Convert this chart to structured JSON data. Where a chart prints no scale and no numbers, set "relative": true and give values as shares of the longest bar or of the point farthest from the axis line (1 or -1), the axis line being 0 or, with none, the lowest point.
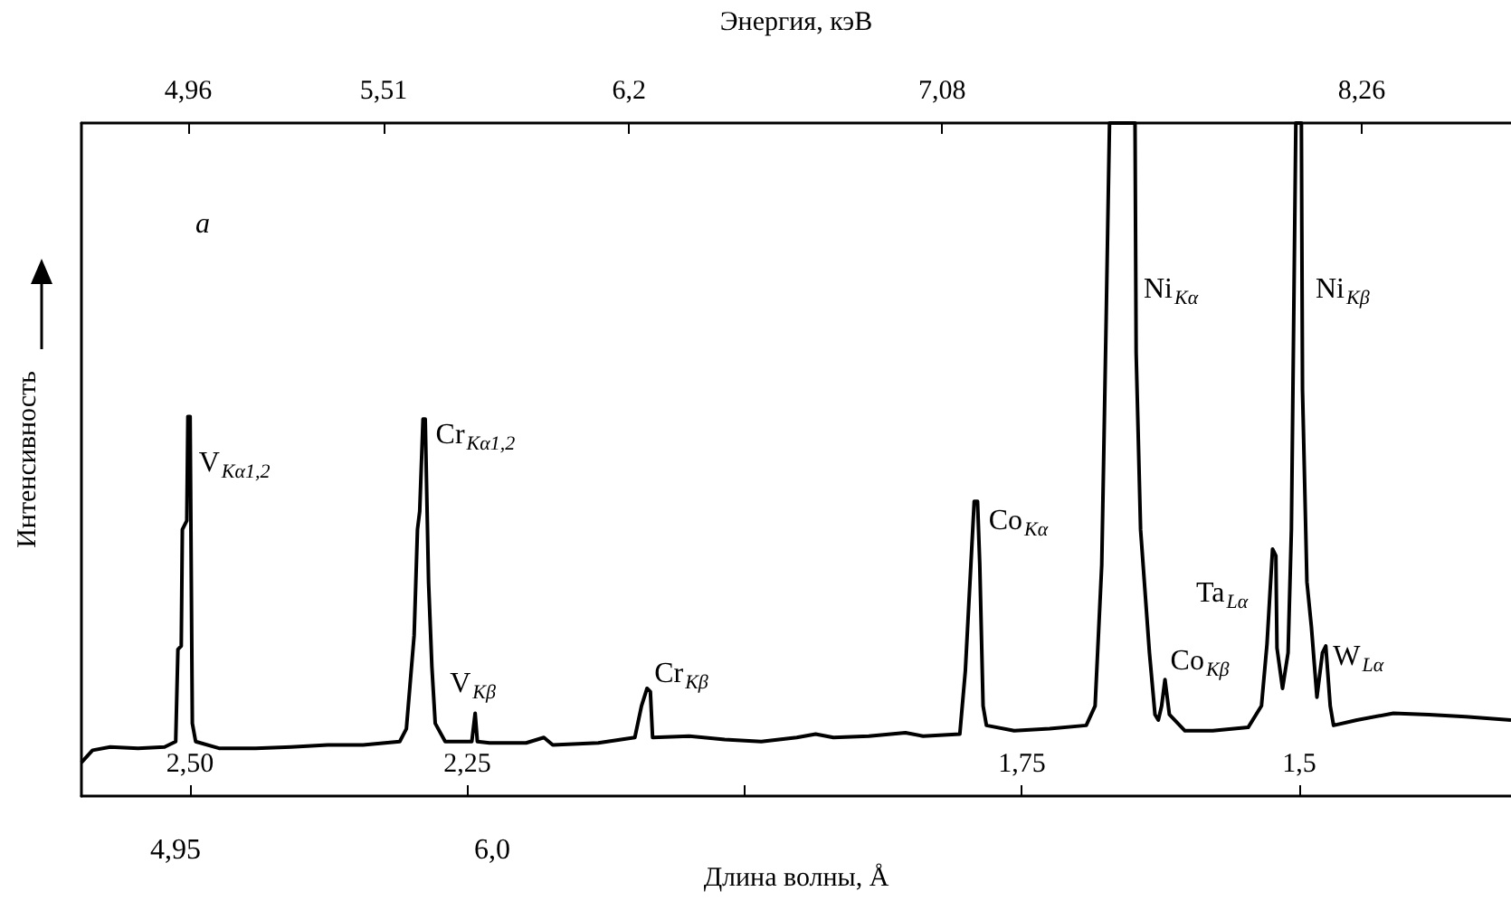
{
  "chart_data": {
    "type": "line",
    "relative": true,
    "xlabel": "Длина волны, Å",
    "x2label": "Энергия, кэВ",
    "ylabel": "Интенсивность",
    "xlim": [
      2.598,
      1.309
    ],
    "xticks": [
      {
        "value": 2.5,
        "label": "2,50"
      },
      {
        "value": 2.25,
        "label": "2,25"
      },
      {
        "value": 2.0,
        "label": null
      },
      {
        "value": 1.75,
        "label": "1,75"
      },
      {
        "value": 1.5,
        "label": "1,5"
      }
    ],
    "x2lim": [
      4.66,
      8.68
    ],
    "x2ticks": [
      {
        "value": 4.96,
        "label": "4,96"
      },
      {
        "value": 5.51,
        "label": "5,51"
      },
      {
        "value": 6.2,
        "label": "6,2"
      },
      {
        "value": 7.08,
        "label": "7,08"
      },
      {
        "value": 8.26,
        "label": "8,26"
      }
    ],
    "series": [
      {
        "color": "#000000",
        "x": [
          2.598,
          2.588,
          2.572,
          2.547,
          2.523,
          2.513,
          2.511,
          2.508,
          2.507,
          2.503,
          2.502,
          2.5,
          2.498,
          2.495,
          2.474,
          2.441,
          2.409,
          2.376,
          2.344,
          2.311,
          2.305,
          2.298,
          2.295,
          2.293,
          2.29,
          2.288,
          2.285,
          2.282,
          2.279,
          2.27,
          2.254,
          2.246,
          2.243,
          2.241,
          2.23,
          2.197,
          2.181,
          2.173,
          2.132,
          2.099,
          2.093,
          2.088,
          2.085,
          2.083,
          2.05,
          2.018,
          1.985,
          1.953,
          1.936,
          1.92,
          1.888,
          1.855,
          1.839,
          1.806,
          1.801,
          1.796,
          1.793,
          1.79,
          1.788,
          1.785,
          1.782,
          1.757,
          1.725,
          1.692,
          1.684,
          1.678,
          1.674,
          1.671,
          1.648,
          1.647,
          1.643,
          1.635,
          1.63,
          1.627,
          1.624,
          1.621,
          1.617,
          1.603,
          1.578,
          1.546,
          1.534,
          1.529,
          1.524,
          1.521,
          1.52,
          1.515,
          1.51,
          1.507,
          1.503,
          1.498,
          1.497,
          1.493,
          1.489,
          1.484,
          1.479,
          1.476,
          1.472,
          1.469,
          1.448,
          1.415,
          1.383,
          1.35,
          1.309
        ],
        "values": [
          0.05,
          0.068,
          0.073,
          0.071,
          0.073,
          0.081,
          0.218,
          0.223,
          0.396,
          0.409,
          0.564,
          0.564,
          0.108,
          0.081,
          0.071,
          0.071,
          0.073,
          0.076,
          0.076,
          0.081,
          0.1,
          0.239,
          0.396,
          0.423,
          0.56,
          0.56,
          0.318,
          0.192,
          0.108,
          0.081,
          0.081,
          0.081,
          0.123,
          0.081,
          0.079,
          0.079,
          0.087,
          0.076,
          0.079,
          0.087,
          0.134,
          0.16,
          0.155,
          0.087,
          0.089,
          0.084,
          0.081,
          0.087,
          0.092,
          0.087,
          0.089,
          0.094,
          0.089,
          0.092,
          0.186,
          0.344,
          0.438,
          0.438,
          0.344,
          0.134,
          0.105,
          0.097,
          0.1,
          0.105,
          0.134,
          0.344,
          0.711,
          1,
          1,
          0.659,
          0.396,
          0.213,
          0.121,
          0.113,
          0.134,
          0.173,
          0.121,
          0.097,
          0.097,
          0.102,
          0.134,
          0.226,
          0.367,
          0.357,
          0.22,
          0.16,
          0.213,
          0.396,
          1,
          1,
          0.604,
          0.318,
          0.252,
          0.147,
          0.213,
          0.223,
          0.134,
          0.105,
          0.113,
          0.123,
          0.121,
          0.118,
          0.113
        ]
      }
    ],
    "annotations": [
      "a",
      "4,95",
      "6,0",
      "Ni$_{Kα}$",
      "Ta$_{Lα}$",
      "Ni$_{Kβ}$",
      {
        "text": "V$_{Kα1,2}$",
        "x": 2.502,
        "y": 0.564
      },
      {
        "text": "Cr$_{Kα1,2}$",
        "x": 2.29,
        "y": 0.56
      },
      {
        "text": "V$_{Kβ}$",
        "x": 2.243,
        "y": 0.123
      },
      {
        "text": "Cr$_{Kβ}$",
        "x": 2.088,
        "y": 0.16
      },
      {
        "text": "Co$_{Kα}$",
        "x": 1.793,
        "y": 0.438
      },
      {
        "text": "Co$_{Kβ}$",
        "x": 1.621,
        "y": 0.173
      },
      {
        "text": "W$_{Lα}$",
        "x": 1.476,
        "y": 0.223
      }
    ]
  }
}
